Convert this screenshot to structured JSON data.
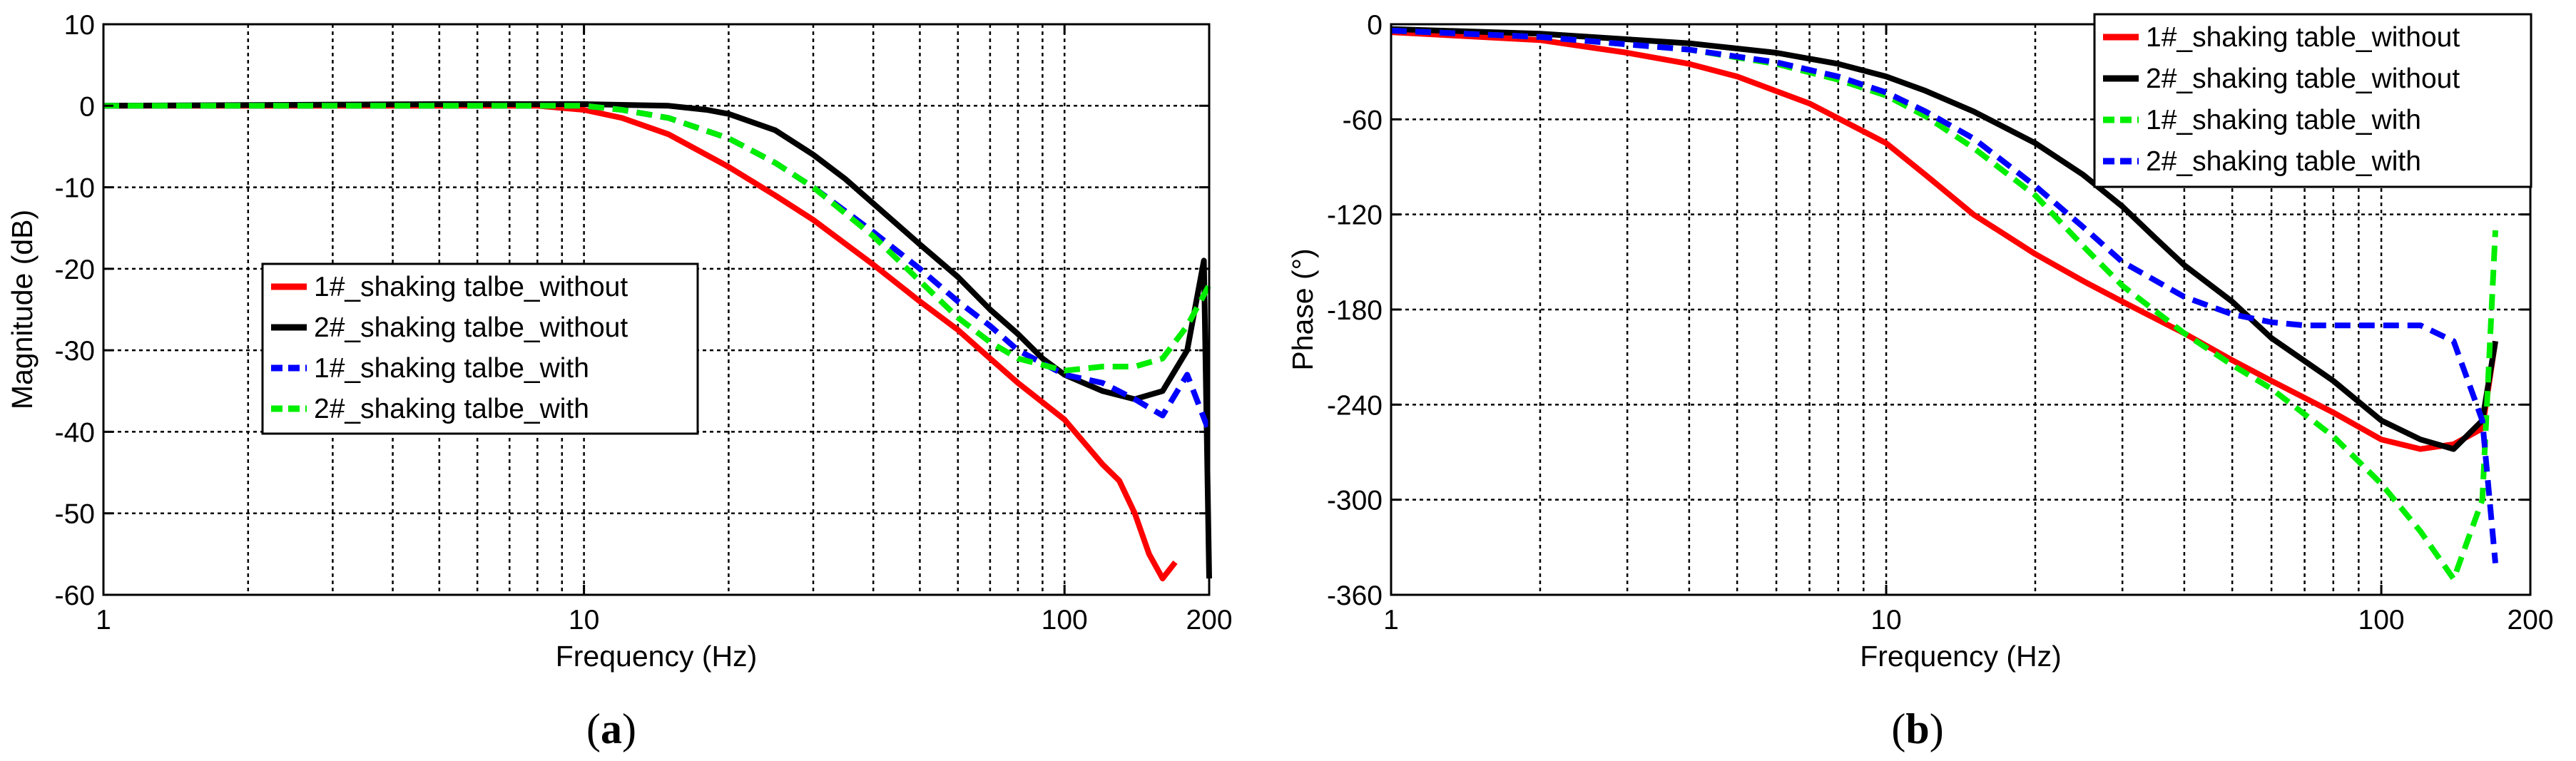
{
  "chart_data": [
    {
      "type": "line",
      "panel_label": "a",
      "xlabel": "Frequency (Hz)",
      "ylabel": "Magnitude (dB)",
      "xscale": "log",
      "xlim": [
        1,
        200
      ],
      "ylim": [
        -60,
        10
      ],
      "xticks": [
        1,
        10,
        100,
        200
      ],
      "xtick_labels": [
        "1",
        "10",
        "100",
        "200"
      ],
      "yticks": [
        10,
        0,
        -10,
        -20,
        -30,
        -40,
        -50,
        -60
      ],
      "ytick_labels": [
        "10",
        "0",
        "-10",
        "-20",
        "-30",
        "-40",
        "-50",
        "-60"
      ],
      "grid": true,
      "legend_position": "center",
      "series": [
        {
          "name": "1#_shaking talbe_without",
          "color": "#ff0000",
          "dash": "solid",
          "x": [
            1,
            2,
            4,
            6,
            8,
            10,
            12,
            15,
            20,
            25,
            30,
            40,
            50,
            60,
            70,
            80,
            100,
            120,
            130,
            140,
            150,
            160,
            170
          ],
          "y": [
            0,
            0,
            0,
            0,
            0,
            -0.5,
            -1.5,
            -3.5,
            -7.5,
            -11,
            -14,
            -19.5,
            -24,
            -27.5,
            -31,
            -34,
            -38.5,
            -44,
            -46,
            -50,
            -55,
            -58,
            -56
          ]
        },
        {
          "name": "2#_shaking talbe_without",
          "color": "#000000",
          "dash": "solid",
          "x": [
            1,
            5,
            10,
            15,
            18,
            20,
            25,
            30,
            35,
            40,
            50,
            60,
            70,
            80,
            90,
            100,
            120,
            140,
            160,
            180,
            195,
            200
          ],
          "y": [
            0,
            0.2,
            0.2,
            0,
            -0.5,
            -1,
            -3,
            -6,
            -9,
            -12,
            -17,
            -21,
            -25,
            -28,
            -31,
            -33,
            -35,
            -36,
            -35,
            -30,
            -19,
            -58
          ]
        },
        {
          "name": "1#_shaking talbe_with",
          "color": "#0000ff",
          "dash": "dashed",
          "x": [
            1,
            5,
            10,
            12,
            15,
            20,
            25,
            30,
            40,
            50,
            60,
            70,
            80,
            100,
            120,
            140,
            160,
            180,
            200
          ],
          "y": [
            0,
            0,
            0,
            -0.5,
            -1.5,
            -4,
            -7,
            -10,
            -15.5,
            -20,
            -24,
            -27,
            -30,
            -33,
            -34,
            -36,
            -38,
            -33,
            -40
          ]
        },
        {
          "name": "2#_shaking talbe_with",
          "color": "#00ee00",
          "dash": "dashed",
          "x": [
            1,
            5,
            10,
            12,
            15,
            20,
            25,
            30,
            40,
            50,
            60,
            70,
            80,
            100,
            120,
            140,
            160,
            180,
            200
          ],
          "y": [
            0,
            0,
            0,
            -0.5,
            -1.5,
            -4,
            -7,
            -10,
            -16,
            -21.5,
            -26,
            -29,
            -31,
            -32.5,
            -32,
            -32,
            -31,
            -27,
            -22
          ]
        }
      ]
    },
    {
      "type": "line",
      "panel_label": "b",
      "xlabel": "Frequency (Hz)",
      "ylabel": "Phase (°)",
      "xscale": "log",
      "xlim": [
        1,
        200
      ],
      "ylim": [
        -360,
        0
      ],
      "xticks": [
        1,
        10,
        100,
        200
      ],
      "xtick_labels": [
        "1",
        "10",
        "100",
        "200"
      ],
      "yticks": [
        0,
        -60,
        -120,
        -180,
        -240,
        -300,
        -360
      ],
      "ytick_labels": [
        "0",
        "-60",
        "-120",
        "-180",
        "-240",
        "-300",
        "-360"
      ],
      "grid": true,
      "legend_position": "top-right",
      "series": [
        {
          "name": "1#_shaking table_without",
          "color": "#ff0000",
          "dash": "solid",
          "x": [
            1,
            2,
            3,
            4,
            5,
            7,
            10,
            12,
            15,
            20,
            25,
            30,
            40,
            50,
            60,
            80,
            100,
            120,
            140,
            160,
            170
          ],
          "y": [
            -5,
            -10,
            -18,
            -25,
            -33,
            -50,
            -75,
            -95,
            -120,
            -145,
            -162,
            -175,
            -195,
            -212,
            -225,
            -245,
            -262,
            -268,
            -265,
            -255,
            -200
          ]
        },
        {
          "name": "2#_shaking table_without",
          "color": "#000000",
          "dash": "solid",
          "x": [
            1,
            2,
            4,
            6,
            8,
            10,
            12,
            15,
            20,
            25,
            30,
            35,
            40,
            50,
            60,
            80,
            100,
            120,
            140,
            160,
            170
          ],
          "y": [
            -3,
            -6,
            -12,
            -18,
            -25,
            -33,
            -42,
            -55,
            -75,
            -95,
            -115,
            -135,
            -152,
            -175,
            -198,
            -225,
            -250,
            -262,
            -268,
            -250,
            -200
          ]
        },
        {
          "name": "1#_shaking table_with",
          "color": "#00ee00",
          "dash": "dashed",
          "x": [
            1,
            2,
            4,
            6,
            8,
            10,
            12,
            15,
            20,
            25,
            30,
            40,
            50,
            60,
            80,
            100,
            120,
            140,
            160,
            170
          ],
          "y": [
            -4,
            -8,
            -16,
            -25,
            -35,
            -45,
            -58,
            -78,
            -108,
            -140,
            -165,
            -195,
            -215,
            -230,
            -260,
            -290,
            -320,
            -350,
            -300,
            -130
          ]
        },
        {
          "name": "2#_shaking table_with",
          "color": "#0000ff",
          "dash": "dashed",
          "x": [
            1,
            2,
            4,
            6,
            8,
            10,
            12,
            15,
            20,
            25,
            30,
            40,
            50,
            60,
            70,
            80,
            100,
            120,
            140,
            160,
            170
          ],
          "y": [
            -4,
            -8,
            -16,
            -24,
            -33,
            -43,
            -55,
            -72,
            -102,
            -128,
            -150,
            -172,
            -183,
            -188,
            -190,
            -190,
            -190,
            -190,
            -200,
            -250,
            -340
          ]
        }
      ]
    }
  ]
}
